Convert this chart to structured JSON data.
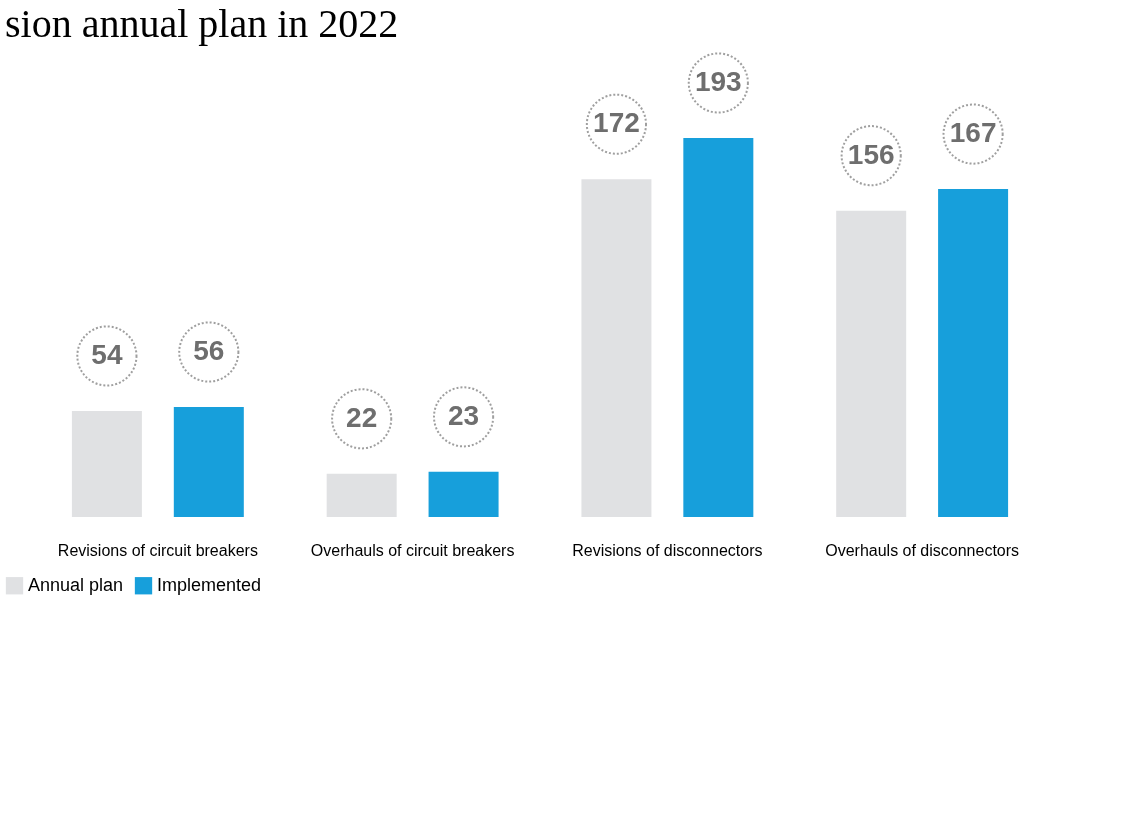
{
  "chart_data": {
    "type": "bar",
    "title": "sion annual plan in 2022",
    "categories": [
      "Revisions of circuit breakers",
      "Overhauls of circuit breakers",
      "Revisions of disconnectors",
      "Overhauls of disconnectors"
    ],
    "series": [
      {
        "name": "Annual plan",
        "color": "#e0e1e3",
        "values": [
          54,
          22,
          172,
          156
        ]
      },
      {
        "name": "Implemented",
        "color": "#179fdb",
        "values": [
          56,
          23,
          193,
          167
        ]
      }
    ],
    "data_labels": true,
    "legend": "bottom",
    "grid": false
  }
}
